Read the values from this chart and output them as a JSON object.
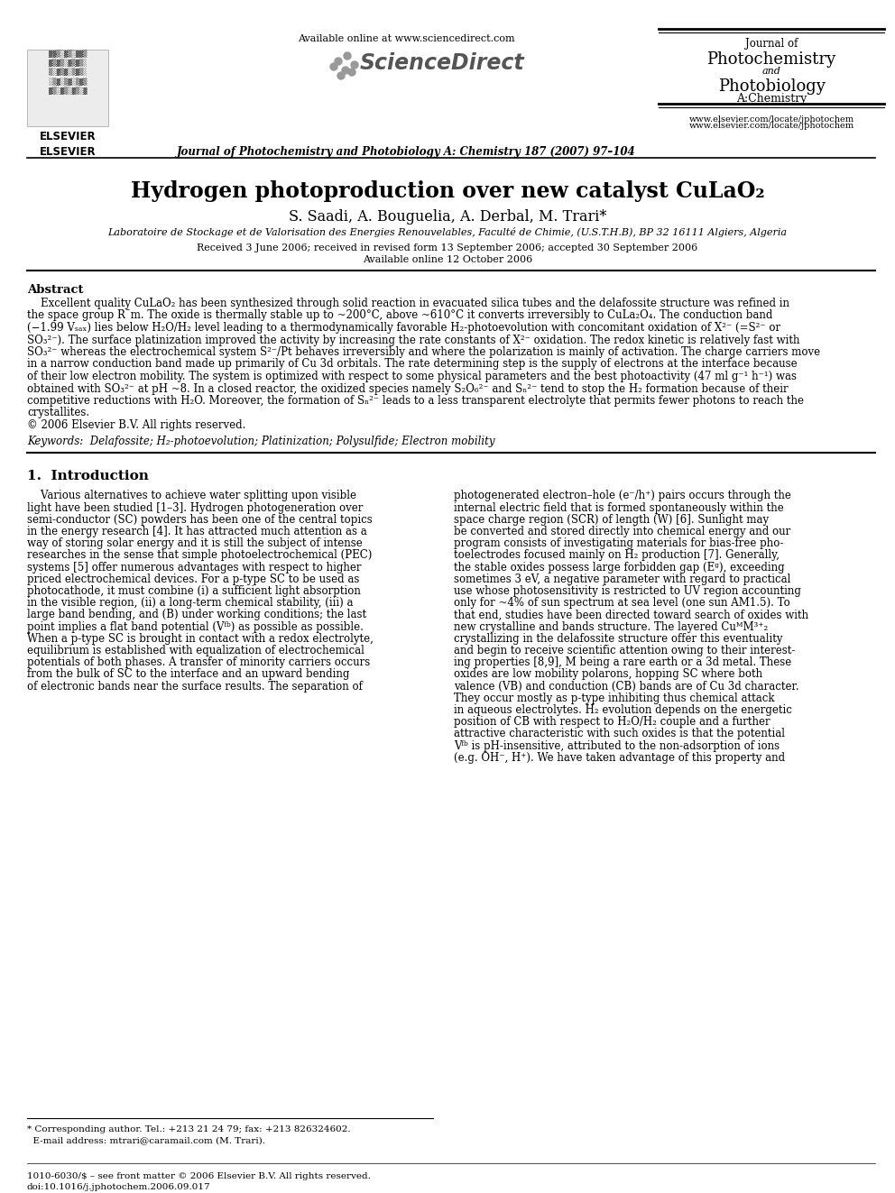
{
  "bg_color": "#ffffff",
  "title": "Hydrogen photoproduction over new catalyst CuLaO₂",
  "authors": "S. Saadi, A. Bouguelia, A. Derbal, M. Trari*",
  "affiliation": "Laboratoire de Stockage et de Valorisation des Energies Renouvelables, Faculté de Chimie, (U.S.T.H.B), BP 32 16111 Algiers, Algeria",
  "received": "Received 3 June 2006; received in revised form 13 September 2006; accepted 30 September 2006",
  "available_online_date": "Available online 12 October 2006",
  "journal_header": "Journal of Photochemistry and Photobiology A: Chemistry 187 (2007) 97–104",
  "available_online": "Available online at www.sciencedirect.com",
  "website": "www.elsevier.com/locate/jphotochem",
  "abstract_title": "Abstract",
  "keywords": "Keywords:  Delafossite; H₂-photoevolution; Platinization; Polysulfide; Electron mobility",
  "intro_heading": "1.  Introduction",
  "footnote_line1": "* Corresponding author. Tel.: +213 21 24 79; fax: +213 826324602.",
  "footnote_line2": "  E-mail address: mtrari@caramail.com (M. Trari).",
  "footer_line1": "1010-6030/$ – see front matter © 2006 Elsevier B.V. All rights reserved.",
  "footer_line2": "doi:10.1016/j.jphotochem.2006.09.017",
  "abstract_lines": [
    "    Excellent quality CuLaO₂ has been synthesized through solid reaction in evacuated silica tubes and the delafossite structure was refined in",
    "the space group R¯m. The oxide is thermally stable up to ~200°C, above ~610°C it converts irreversibly to CuLa₂O₄. The conduction band",
    "(−1.99 Vₛₐₓ) lies below H₂O/H₂ level leading to a thermodynamically favorable H₂-photoevolution with concomitant oxidation of X²⁻ (=S²⁻ or",
    "SO₃²⁻). The surface platinization improved the activity by increasing the rate constants of X²⁻ oxidation. The redox kinetic is relatively fast with",
    "SO₃²⁻ whereas the electrochemical system S²⁻/Pt behaves irreversibly and where the polarization is mainly of activation. The charge carriers move",
    "in a narrow conduction band made up primarily of Cu 3d orbitals. The rate determining step is the supply of electrons at the interface because",
    "of their low electron mobility. The system is optimized with respect to some physical parameters and the best photoactivity (47 ml g⁻¹ h⁻¹) was",
    "obtained with SO₃²⁻ at pH ~8. In a closed reactor, the oxidized species namely S₂O₆²⁻ and Sₙ²⁻ tend to stop the H₂ formation because of their",
    "competitive reductions with H₂O. Moreover, the formation of Sₙ²⁻ leads to a less transparent electrolyte that permits fewer photons to reach the",
    "crystallites.",
    "© 2006 Elsevier B.V. All rights reserved."
  ],
  "col1_lines": [
    "    Various alternatives to achieve water splitting upon visible",
    "light have been studied [1–3]. Hydrogen photogeneration over",
    "semi-conductor (SC) powders has been one of the central topics",
    "in the energy research [4]. It has attracted much attention as a",
    "way of storing solar energy and it is still the subject of intense",
    "researches in the sense that simple photoelectrochemical (PEC)",
    "systems [5] offer numerous advantages with respect to higher",
    "priced electrochemical devices. For a p-type SC to be used as",
    "photocathode, it must combine (i) a sufficient light absorption",
    "in the visible region, (ii) a long-term chemical stability, (iii) a",
    "large band bending, and (B) under working conditions; the last",
    "point implies a flat band potential (Vᶠᵇ) as possible as possible.",
    "When a p-type SC is brought in contact with a redox electrolyte,",
    "equilibrium is established with equalization of electrochemical",
    "potentials of both phases. A transfer of minority carriers occurs",
    "from the bulk of SC to the interface and an upward bending",
    "of electronic bands near the surface results. The separation of"
  ],
  "col2_lines": [
    "photogenerated electron–hole (e⁻/h⁺) pairs occurs through the",
    "internal electric field that is formed spontaneously within the",
    "space charge region (SCR) of length (W) [6]. Sunlight may",
    "be converted and stored directly into chemical energy and our",
    "program consists of investigating materials for bias-free pho-",
    "toelectrodes focused mainly on H₂ production [7]. Generally,",
    "the stable oxides possess large forbidden gap (Eᵍ), exceeding",
    "sometimes 3 eV, a negative parameter with regard to practical",
    "use whose photosensitivity is restricted to UV region accounting",
    "only for ~4% of sun spectrum at sea level (one sun AM1.5). To",
    "that end, studies have been directed toward search of oxides with",
    "new crystalline and bands structure. The layered CuᴹM³⁺₂",
    "crystallizing in the delafossite structure offer this eventuality",
    "and begin to receive scientific attention owing to their interest-",
    "ing properties [8,9], M being a rare earth or a 3d metal. These",
    "oxides are low mobility polarons, hopping SC where both",
    "valence (VB) and conduction (CB) bands are of Cu 3d character.",
    "They occur mostly as p-type inhibiting thus chemical attack",
    "in aqueous electrolytes. H₂ evolution depends on the energetic",
    "position of CB with respect to H₂O/H₂ couple and a further",
    "attractive characteristic with such oxides is that the potential",
    "Vᶠᵇ is pH-insensitive, attributed to the non-adsorption of ions",
    "(e.g. OH⁻, H⁺). We have taken advantage of this property and"
  ]
}
